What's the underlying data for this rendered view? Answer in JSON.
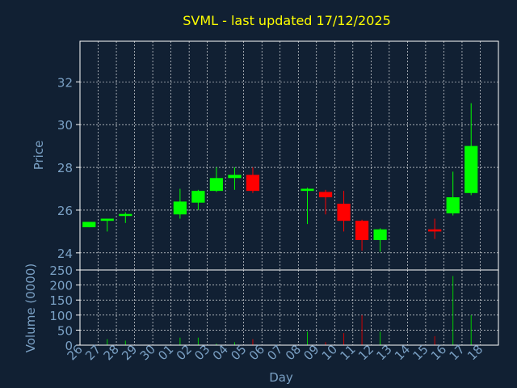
{
  "chart_data": {
    "type": "candlestick",
    "title": "SVML - last updated 17/12/2025",
    "xlabel": "Day",
    "price_panel": {
      "ylabel": "Price",
      "yticks": [
        24,
        26,
        28,
        30,
        32
      ],
      "ylim": [
        23.2,
        33.9
      ]
    },
    "volume_panel": {
      "ylabel": "Volume (0000)",
      "yticks": [
        0,
        50,
        100,
        150,
        200,
        250
      ],
      "ylim": [
        0,
        250
      ]
    },
    "categories": [
      "26",
      "27",
      "28",
      "29",
      "30",
      "01",
      "02",
      "03",
      "04",
      "05",
      "06",
      "07",
      "08",
      "09",
      "10",
      "11",
      "12",
      "13",
      "14",
      "15",
      "16",
      "17",
      "18"
    ],
    "candles": [
      {
        "day": "26",
        "open": 25.2,
        "close": 25.45,
        "high": 25.45,
        "low": 25.2,
        "volume": 0
      },
      {
        "day": "27",
        "open": 25.5,
        "close": 25.6,
        "high": 25.6,
        "low": 25.0,
        "volume": 20
      },
      {
        "day": "28",
        "open": 25.75,
        "close": 25.82,
        "high": 25.9,
        "low": 25.4,
        "volume": 15
      },
      {
        "day": "01",
        "open": 25.8,
        "close": 26.4,
        "high": 27.0,
        "low": 25.6,
        "volume": 25
      },
      {
        "day": "02",
        "open": 26.35,
        "close": 26.9,
        "high": 26.95,
        "low": 26.0,
        "volume": 25
      },
      {
        "day": "03",
        "open": 26.9,
        "close": 27.5,
        "high": 28.0,
        "low": 26.85,
        "volume": 5
      },
      {
        "day": "04",
        "open": 27.5,
        "close": 27.65,
        "high": 28.0,
        "low": 26.95,
        "volume": 10
      },
      {
        "day": "05",
        "open": 27.65,
        "close": 26.9,
        "high": 28.0,
        "low": 26.8,
        "volume": 20
      },
      {
        "day": "08",
        "open": 26.9,
        "close": 27.0,
        "high": 27.05,
        "low": 25.35,
        "volume": 45
      },
      {
        "day": "09",
        "open": 26.85,
        "close": 26.6,
        "high": 26.95,
        "low": 25.8,
        "volume": 10
      },
      {
        "day": "10",
        "open": 26.3,
        "close": 25.5,
        "high": 26.9,
        "low": 25.0,
        "volume": 40
      },
      {
        "day": "11",
        "open": 25.5,
        "close": 24.6,
        "high": 25.55,
        "low": 24.1,
        "volume": 100
      },
      {
        "day": "12",
        "open": 24.6,
        "close": 25.1,
        "high": 25.15,
        "low": 24.05,
        "volume": 45
      },
      {
        "day": "15",
        "open": 25.1,
        "close": 25.0,
        "high": 25.6,
        "low": 24.65,
        "volume": 30
      },
      {
        "day": "16",
        "open": 25.85,
        "close": 26.6,
        "high": 27.8,
        "low": 25.75,
        "volume": 230
      },
      {
        "day": "17",
        "open": 26.8,
        "close": 29.0,
        "high": 31.0,
        "low": 26.7,
        "volume": 100
      }
    ],
    "colors": {
      "up": "#00ff00",
      "down": "#ff0000",
      "title": "#ffff00",
      "axis_text": "#7aa0c4",
      "grid": "#ffffff",
      "background": "#112033"
    }
  }
}
